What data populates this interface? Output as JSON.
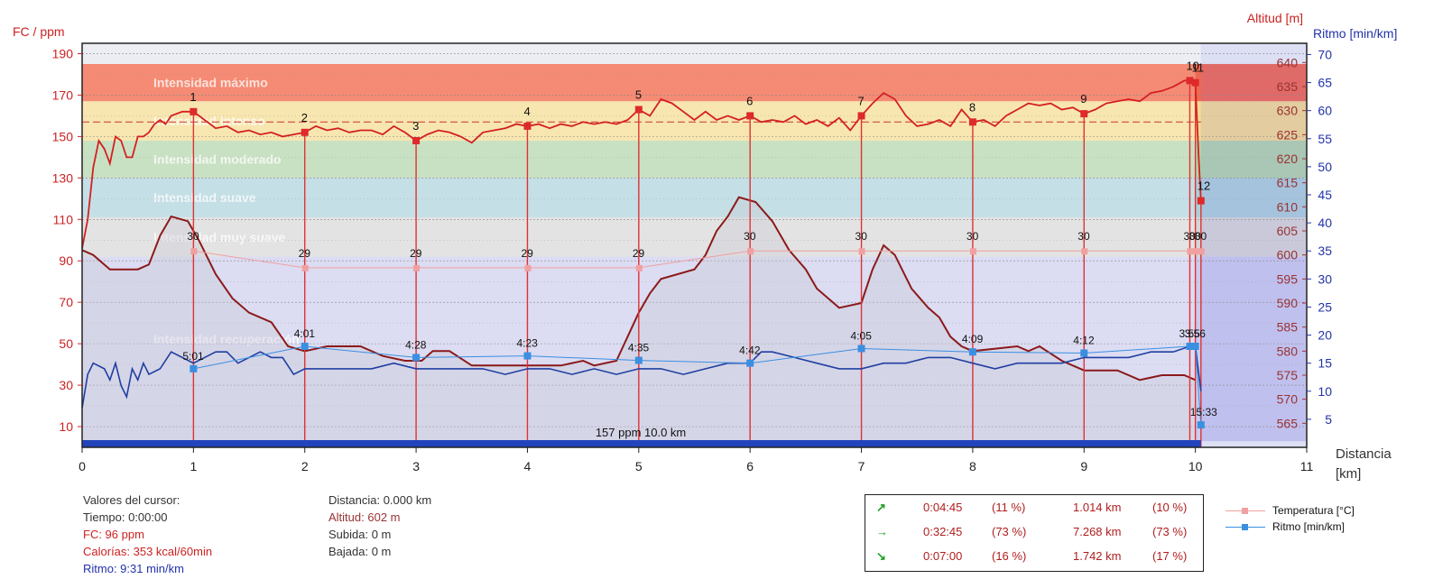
{
  "axes": {
    "left_title": "FC / ppm",
    "right_title_altitude": "Altitud [m]",
    "right_title_pace": "Ritmo [min/km]",
    "x_title": "Distancia",
    "x_unit": "[km]"
  },
  "zones": [
    {
      "label": "Intensidad máximo",
      "from": 167,
      "to": 185,
      "color": "#f58b74"
    },
    {
      "label": "Intensidad intenso",
      "from": 148,
      "to": 167,
      "color": "#f7e6b0"
    },
    {
      "label": "Intensidad moderado",
      "from": 130,
      "to": 148,
      "color": "#c9e1c3"
    },
    {
      "label": "Intensidad suave",
      "from": 111,
      "to": 130,
      "color": "#c5dfe6"
    },
    {
      "label": "Intensidad muy suave",
      "from": 92,
      "to": 111,
      "color": "#e3e3e3"
    },
    {
      "label": "Intensidad recuperación",
      "from": 3,
      "to": 92,
      "color": "#dcdcf3"
    }
  ],
  "avg_label": "157 ppm 10.0 km",
  "cursor": {
    "header": "Valores del cursor:",
    "time": "Tiempo: 0:00:00",
    "hr": "FC: 96 ppm",
    "calories": "Calorías: 353 kcal/60min",
    "pace": "Ritmo: 9:31 min/km",
    "distance": "Distancia: 0.000 km",
    "altitude": "Altitud: 602 m",
    "ascent": "Subida: 0 m",
    "descent": "Bajada: 0 m"
  },
  "summary": [
    {
      "icon": "↗",
      "time": "0:04:45",
      "time_pct": "(11 %)",
      "dist": "1.014 km",
      "dist_pct": "(10 %)"
    },
    {
      "icon": "→",
      "time": "0:32:45",
      "time_pct": "(73 %)",
      "dist": "7.268 km",
      "dist_pct": "(73 %)"
    },
    {
      "icon": "↘",
      "time": "0:07:00",
      "time_pct": "(16 %)",
      "dist": "1.742 km",
      "dist_pct": "(17 %)"
    }
  ],
  "legend": [
    {
      "label": "Temperatura [°C]",
      "color": "#f0a0a0"
    },
    {
      "label": "Ritmo [min/km]",
      "color": "#3a8fe0"
    }
  ],
  "chart_data": {
    "type": "line",
    "x_range": [
      0,
      11
    ],
    "x_ticks": [
      0,
      1,
      2,
      3,
      4,
      5,
      6,
      7,
      8,
      9,
      10,
      11
    ],
    "hr_range": [
      0,
      195
    ],
    "hr_ticks": [
      10,
      30,
      50,
      70,
      90,
      110,
      130,
      150,
      170,
      190
    ],
    "altitude_range": [
      560,
      644
    ],
    "altitude_ticks": [
      565,
      570,
      575,
      580,
      585,
      590,
      595,
      600,
      605,
      610,
      615,
      620,
      625,
      630,
      635,
      640
    ],
    "pace_range": [
      0,
      72
    ],
    "pace_ticks": [
      5,
      10,
      15,
      20,
      25,
      30,
      35,
      40,
      45,
      50,
      55,
      60,
      65,
      70
    ],
    "avg_hr": 157,
    "laps": [
      {
        "x": 1.0,
        "label": "1",
        "hr": 162,
        "temp_label": "30",
        "temp": 35,
        "pace_label": "5:01",
        "pace": 14
      },
      {
        "x": 2.0,
        "label": "2",
        "hr": 152,
        "temp_label": "29",
        "temp": 32,
        "pace_label": "4:01",
        "pace": 18
      },
      {
        "x": 3.0,
        "label": "3",
        "hr": 148,
        "temp_label": "29",
        "temp": 32,
        "pace_label": "4:28",
        "pace": 16
      },
      {
        "x": 4.0,
        "label": "4",
        "hr": 155,
        "temp_label": "29",
        "temp": 32,
        "pace_label": "4:23",
        "pace": 16.3
      },
      {
        "x": 5.0,
        "label": "5",
        "hr": 163,
        "temp_label": "29",
        "temp": 32,
        "pace_label": "4:35",
        "pace": 15.5
      },
      {
        "x": 6.0,
        "label": "6",
        "hr": 160,
        "temp_label": "30",
        "temp": 35,
        "pace_label": "4:42",
        "pace": 15
      },
      {
        "x": 7.0,
        "label": "7",
        "hr": 160,
        "temp_label": "30",
        "temp": 35,
        "pace_label": "4:05",
        "pace": 17.6
      },
      {
        "x": 8.0,
        "label": "8",
        "hr": 157,
        "temp_label": "30",
        "temp": 35,
        "pace_label": "4:09",
        "pace": 17
      },
      {
        "x": 9.0,
        "label": "9",
        "hr": 161,
        "temp_label": "30",
        "temp": 35,
        "pace_label": "4:12",
        "pace": 16.8
      },
      {
        "x": 9.95,
        "label": "10",
        "hr": 177,
        "temp_label": "30",
        "temp": 35,
        "pace_label": "3:55",
        "pace": 18
      },
      {
        "x": 10.0,
        "label": "11",
        "hr": 176,
        "temp_label": "30",
        "temp": 35,
        "pace_label": "3:56",
        "pace": 18
      },
      {
        "x": 10.05,
        "label": "12",
        "hr": 119,
        "temp_label": "30",
        "temp": 35,
        "pace_label": "15:33",
        "pace": 4
      }
    ],
    "heart_rate": [
      [
        0,
        96
      ],
      [
        0.05,
        110
      ],
      [
        0.1,
        135
      ],
      [
        0.15,
        148
      ],
      [
        0.2,
        144
      ],
      [
        0.25,
        137
      ],
      [
        0.3,
        150
      ],
      [
        0.35,
        148
      ],
      [
        0.4,
        140
      ],
      [
        0.45,
        140
      ],
      [
        0.5,
        150
      ],
      [
        0.55,
        150
      ],
      [
        0.6,
        152
      ],
      [
        0.65,
        156
      ],
      [
        0.7,
        158
      ],
      [
        0.75,
        156
      ],
      [
        0.8,
        160
      ],
      [
        0.9,
        162
      ],
      [
        1.0,
        162
      ],
      [
        1.1,
        158
      ],
      [
        1.2,
        154
      ],
      [
        1.3,
        155
      ],
      [
        1.4,
        152
      ],
      [
        1.5,
        153
      ],
      [
        1.6,
        151
      ],
      [
        1.7,
        152
      ],
      [
        1.8,
        150
      ],
      [
        1.9,
        151
      ],
      [
        2.0,
        152
      ],
      [
        2.1,
        155
      ],
      [
        2.2,
        153
      ],
      [
        2.3,
        154
      ],
      [
        2.4,
        152
      ],
      [
        2.5,
        153
      ],
      [
        2.6,
        153
      ],
      [
        2.7,
        151
      ],
      [
        2.8,
        155
      ],
      [
        2.9,
        152
      ],
      [
        3.0,
        148
      ],
      [
        3.1,
        151
      ],
      [
        3.2,
        153
      ],
      [
        3.3,
        152
      ],
      [
        3.4,
        150
      ],
      [
        3.5,
        147
      ],
      [
        3.6,
        152
      ],
      [
        3.7,
        153
      ],
      [
        3.8,
        154
      ],
      [
        3.9,
        156
      ],
      [
        4.0,
        155
      ],
      [
        4.1,
        156
      ],
      [
        4.2,
        154
      ],
      [
        4.3,
        156
      ],
      [
        4.4,
        155
      ],
      [
        4.5,
        157
      ],
      [
        4.6,
        156
      ],
      [
        4.7,
        157
      ],
      [
        4.8,
        156
      ],
      [
        4.9,
        158
      ],
      [
        5.0,
        163
      ],
      [
        5.1,
        160
      ],
      [
        5.2,
        168
      ],
      [
        5.3,
        166
      ],
      [
        5.4,
        162
      ],
      [
        5.5,
        158
      ],
      [
        5.6,
        162
      ],
      [
        5.7,
        158
      ],
      [
        5.8,
        160
      ],
      [
        5.9,
        158
      ],
      [
        6.0,
        160
      ],
      [
        6.1,
        157
      ],
      [
        6.2,
        158
      ],
      [
        6.3,
        157
      ],
      [
        6.4,
        160
      ],
      [
        6.5,
        156
      ],
      [
        6.6,
        158
      ],
      [
        6.7,
        155
      ],
      [
        6.8,
        159
      ],
      [
        6.9,
        153
      ],
      [
        7.0,
        160
      ],
      [
        7.1,
        166
      ],
      [
        7.2,
        171
      ],
      [
        7.3,
        168
      ],
      [
        7.4,
        160
      ],
      [
        7.5,
        155
      ],
      [
        7.6,
        156
      ],
      [
        7.7,
        158
      ],
      [
        7.8,
        155
      ],
      [
        7.9,
        163
      ],
      [
        8.0,
        157
      ],
      [
        8.1,
        158
      ],
      [
        8.2,
        155
      ],
      [
        8.3,
        160
      ],
      [
        8.4,
        163
      ],
      [
        8.5,
        166
      ],
      [
        8.6,
        165
      ],
      [
        8.7,
        166
      ],
      [
        8.8,
        163
      ],
      [
        8.9,
        164
      ],
      [
        9.0,
        161
      ],
      [
        9.1,
        163
      ],
      [
        9.2,
        166
      ],
      [
        9.3,
        167
      ],
      [
        9.4,
        168
      ],
      [
        9.5,
        167
      ],
      [
        9.6,
        171
      ],
      [
        9.7,
        172
      ],
      [
        9.8,
        174
      ],
      [
        9.9,
        177
      ],
      [
        9.95,
        177
      ],
      [
        10.0,
        176
      ],
      [
        10.03,
        140
      ],
      [
        10.05,
        119
      ]
    ],
    "altitude": [
      [
        0,
        601
      ],
      [
        0.1,
        600
      ],
      [
        0.25,
        597
      ],
      [
        0.5,
        597
      ],
      [
        0.6,
        598
      ],
      [
        0.7,
        604
      ],
      [
        0.8,
        608
      ],
      [
        0.95,
        607
      ],
      [
        1.05,
        603
      ],
      [
        1.2,
        596
      ],
      [
        1.35,
        591
      ],
      [
        1.5,
        588
      ],
      [
        1.7,
        586
      ],
      [
        1.85,
        581
      ],
      [
        2.0,
        580
      ],
      [
        2.2,
        581
      ],
      [
        2.5,
        581
      ],
      [
        2.7,
        579
      ],
      [
        2.9,
        578
      ],
      [
        3.05,
        578
      ],
      [
        3.15,
        580
      ],
      [
        3.3,
        580
      ],
      [
        3.5,
        577
      ],
      [
        3.9,
        577
      ],
      [
        4.3,
        577
      ],
      [
        4.5,
        578
      ],
      [
        4.6,
        577
      ],
      [
        4.8,
        578
      ],
      [
        4.9,
        583
      ],
      [
        5.0,
        588
      ],
      [
        5.1,
        592
      ],
      [
        5.2,
        595
      ],
      [
        5.5,
        597
      ],
      [
        5.6,
        600
      ],
      [
        5.7,
        605
      ],
      [
        5.8,
        608
      ],
      [
        5.9,
        612
      ],
      [
        6.05,
        611
      ],
      [
        6.2,
        607
      ],
      [
        6.35,
        601
      ],
      [
        6.5,
        597
      ],
      [
        6.6,
        593
      ],
      [
        6.8,
        589
      ],
      [
        7.0,
        590
      ],
      [
        7.1,
        597
      ],
      [
        7.2,
        602
      ],
      [
        7.3,
        600
      ],
      [
        7.45,
        593
      ],
      [
        7.6,
        589
      ],
      [
        7.7,
        587
      ],
      [
        7.8,
        583
      ],
      [
        7.9,
        581
      ],
      [
        8.0,
        580
      ],
      [
        8.4,
        581
      ],
      [
        8.5,
        580
      ],
      [
        8.6,
        581
      ],
      [
        8.8,
        578
      ],
      [
        9.0,
        576
      ],
      [
        9.3,
        576
      ],
      [
        9.5,
        574
      ],
      [
        9.7,
        575
      ],
      [
        9.9,
        575
      ],
      [
        10.0,
        574
      ]
    ],
    "pace": [
      [
        0,
        7
      ],
      [
        0.05,
        13
      ],
      [
        0.1,
        15
      ],
      [
        0.2,
        14
      ],
      [
        0.25,
        12
      ],
      [
        0.3,
        15
      ],
      [
        0.35,
        11
      ],
      [
        0.4,
        9
      ],
      [
        0.45,
        14
      ],
      [
        0.5,
        12
      ],
      [
        0.55,
        15
      ],
      [
        0.6,
        13
      ],
      [
        0.7,
        14
      ],
      [
        0.8,
        17
      ],
      [
        0.9,
        16
      ],
      [
        1.0,
        15
      ],
      [
        1.1,
        16
      ],
      [
        1.2,
        17
      ],
      [
        1.3,
        17
      ],
      [
        1.4,
        15
      ],
      [
        1.5,
        16
      ],
      [
        1.6,
        17
      ],
      [
        1.7,
        16
      ],
      [
        1.8,
        16
      ],
      [
        1.9,
        13
      ],
      [
        2.0,
        14
      ],
      [
        2.2,
        14
      ],
      [
        2.4,
        14
      ],
      [
        2.6,
        14
      ],
      [
        2.8,
        15
      ],
      [
        3.0,
        14
      ],
      [
        3.2,
        14
      ],
      [
        3.4,
        14
      ],
      [
        3.6,
        14
      ],
      [
        3.8,
        13
      ],
      [
        4.0,
        14
      ],
      [
        4.2,
        14
      ],
      [
        4.4,
        13
      ],
      [
        4.6,
        14
      ],
      [
        4.8,
        13
      ],
      [
        5.0,
        14
      ],
      [
        5.2,
        14
      ],
      [
        5.4,
        13
      ],
      [
        5.6,
        14
      ],
      [
        5.8,
        15
      ],
      [
        6.0,
        15
      ],
      [
        6.1,
        17
      ],
      [
        6.2,
        17
      ],
      [
        6.4,
        16
      ],
      [
        6.6,
        15
      ],
      [
        6.8,
        14
      ],
      [
        7.0,
        14
      ],
      [
        7.2,
        15
      ],
      [
        7.4,
        15
      ],
      [
        7.6,
        16
      ],
      [
        7.8,
        16
      ],
      [
        8.0,
        15
      ],
      [
        8.2,
        14
      ],
      [
        8.4,
        15
      ],
      [
        8.6,
        15
      ],
      [
        8.8,
        15
      ],
      [
        9.0,
        16
      ],
      [
        9.2,
        16
      ],
      [
        9.4,
        16
      ],
      [
        9.6,
        17
      ],
      [
        9.8,
        17
      ],
      [
        9.95,
        18
      ],
      [
        10.0,
        18
      ],
      [
        10.05,
        10
      ]
    ]
  }
}
